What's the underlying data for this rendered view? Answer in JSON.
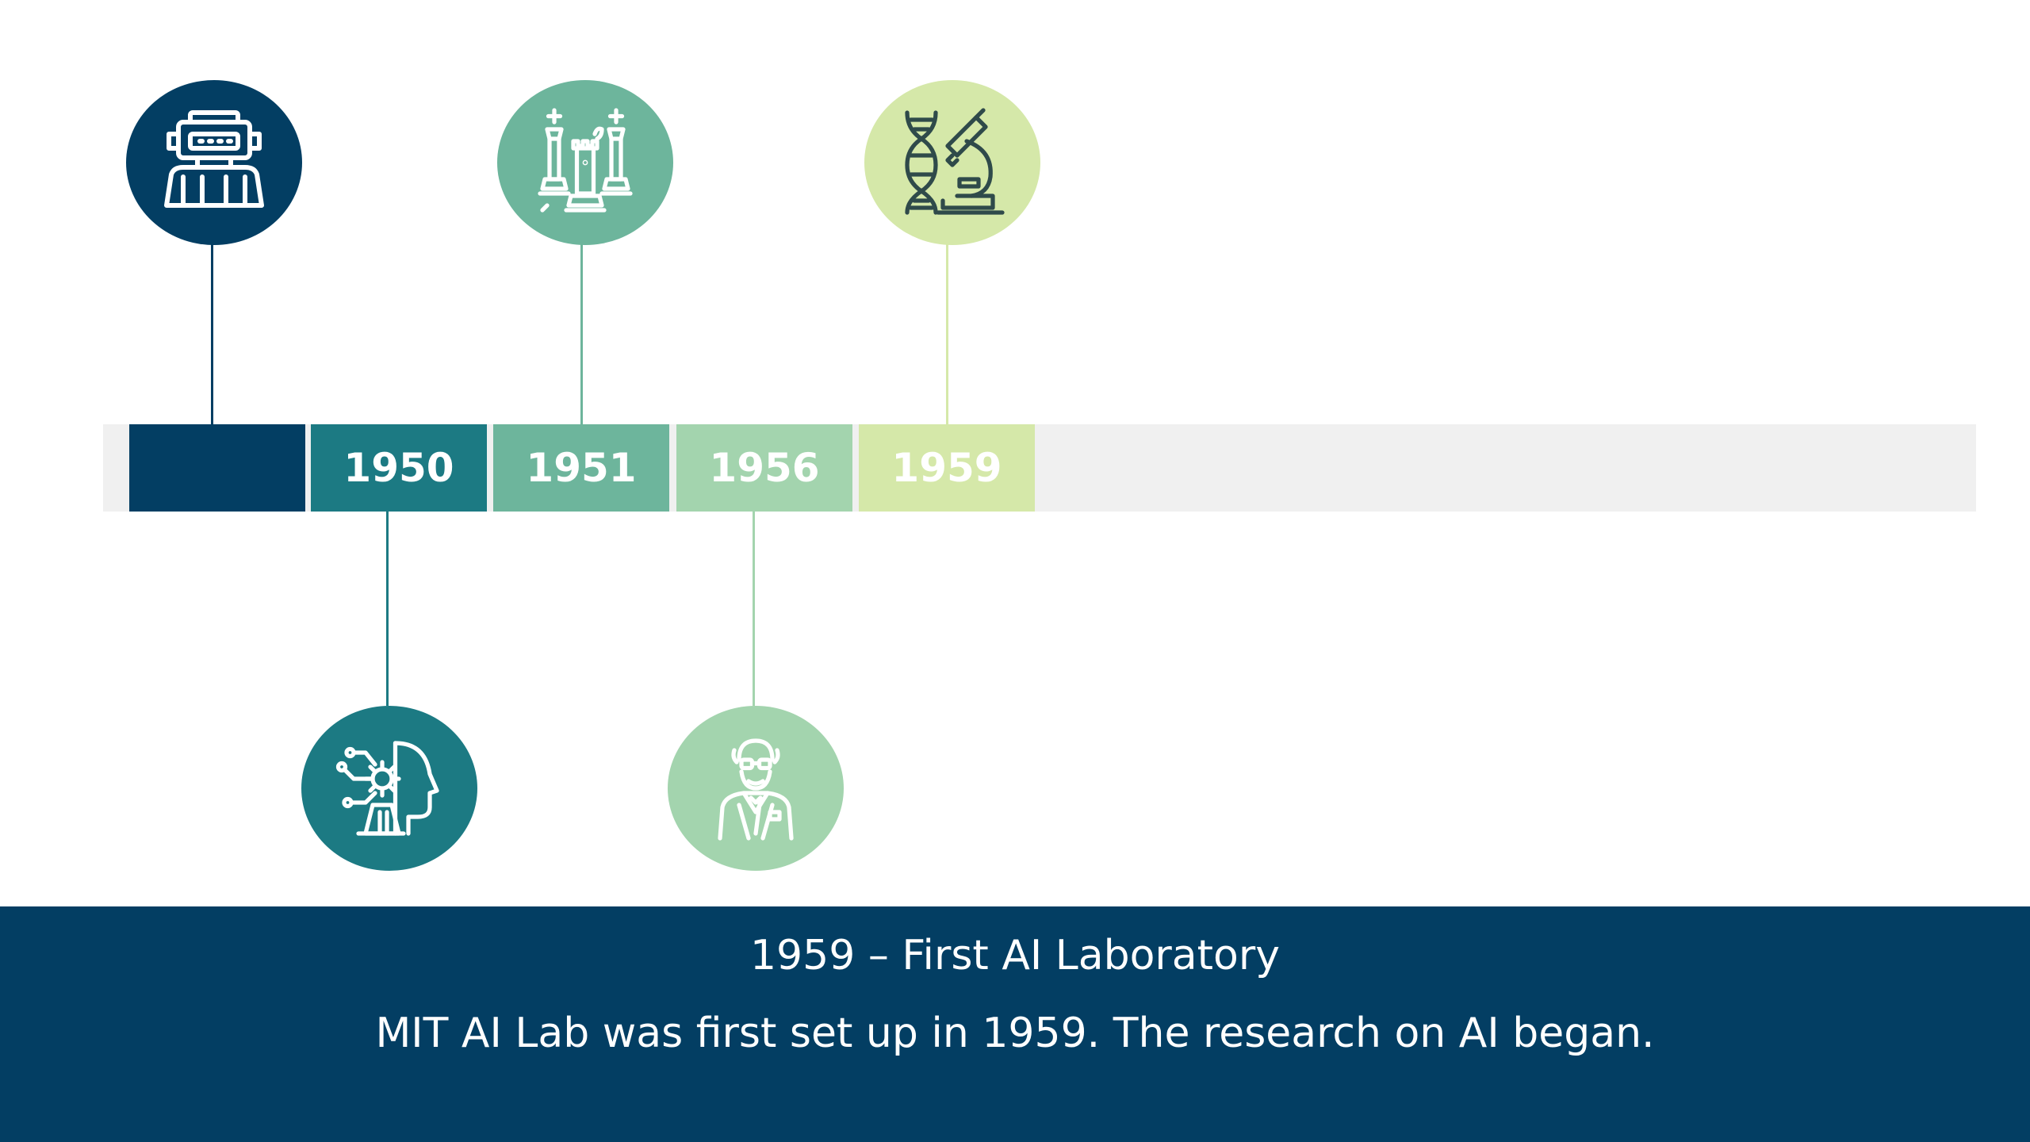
{
  "timeline": {
    "segments": [
      {
        "year": "",
        "color": "#033e63"
      },
      {
        "year": "1950",
        "color": "#1c7a83"
      },
      {
        "year": "1951",
        "color": "#6db59c"
      },
      {
        "year": "1956",
        "color": "#a3d4ae"
      },
      {
        "year": "1959",
        "color": "#d5e8a9"
      }
    ],
    "track_color": "#f0f0f0",
    "icons": [
      {
        "name": "robot-icon",
        "color": "#033e63"
      },
      {
        "name": "ai-head-icon",
        "color": "#1c7a83"
      },
      {
        "name": "chess-pieces-icon",
        "color": "#6db59c"
      },
      {
        "name": "scientist-icon",
        "color": "#a3d4ae"
      },
      {
        "name": "dna-microscope-icon",
        "color": "#d5e8a9"
      }
    ]
  },
  "caption": {
    "title": "1959 – First AI Laboratory",
    "body": "MIT AI Lab was first set up in 1959. The research on AI began.",
    "background": "#033e63"
  }
}
